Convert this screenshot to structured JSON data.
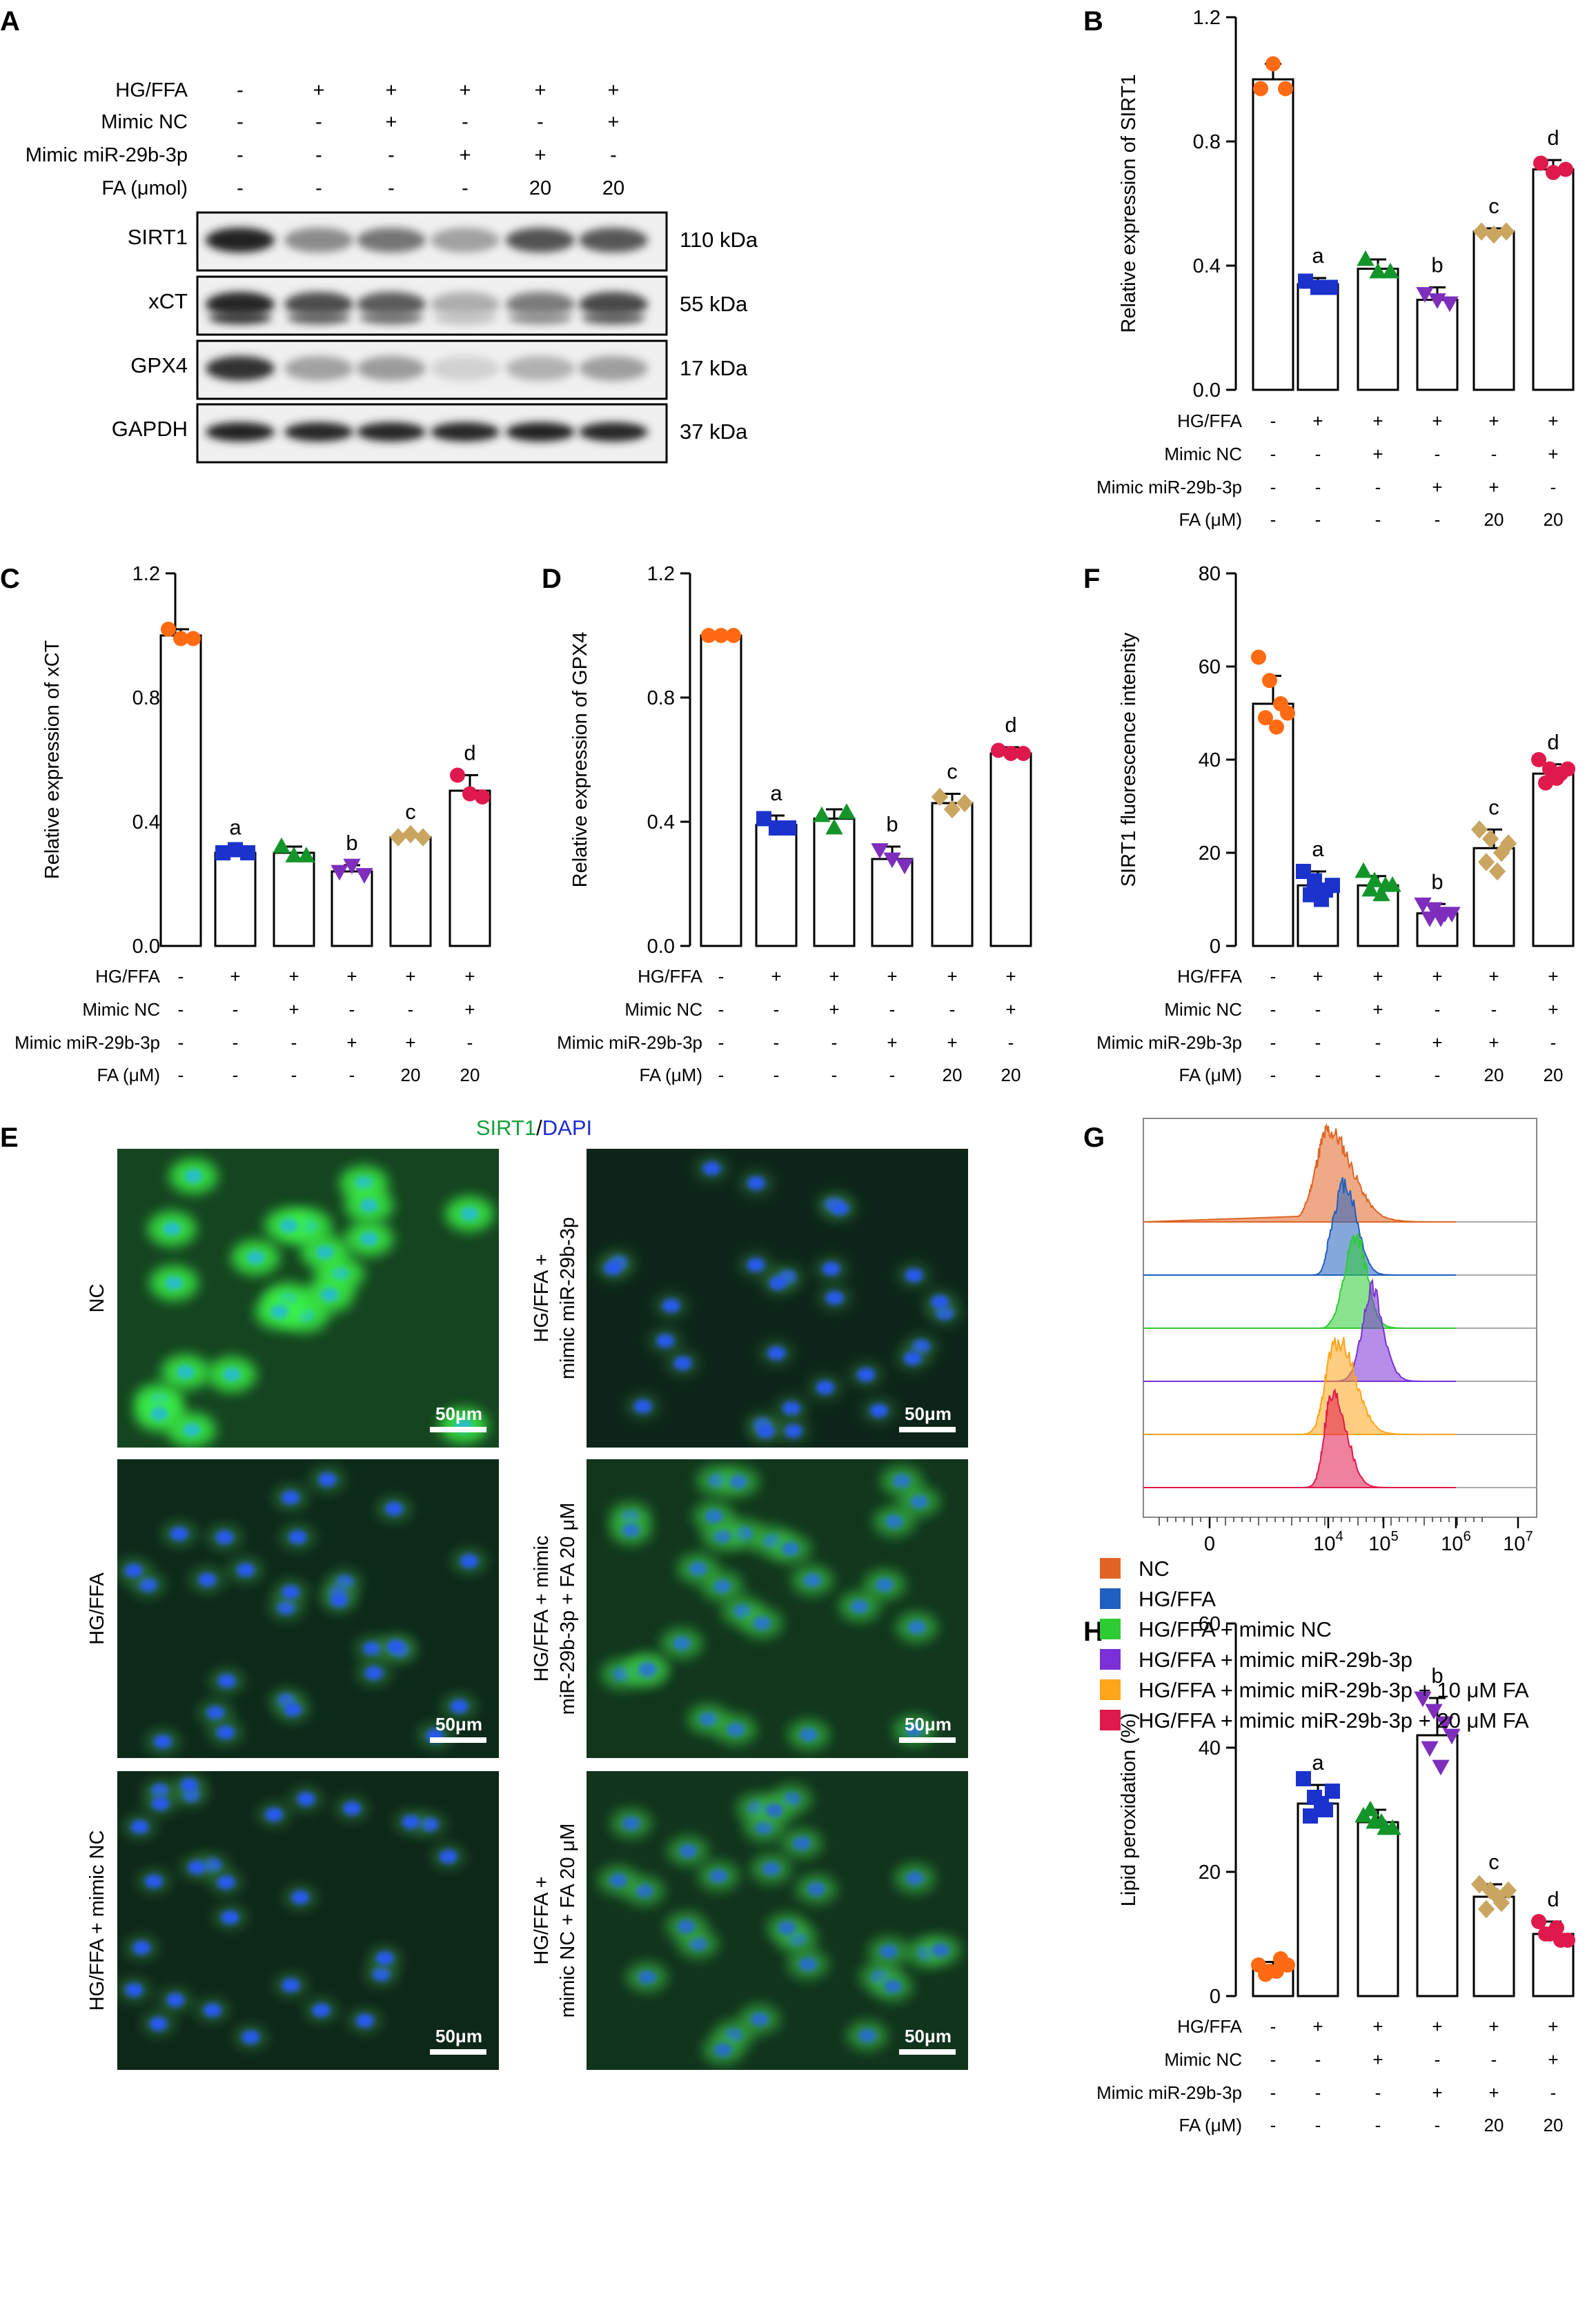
{
  "panel_letters": [
    "A",
    "B",
    "C",
    "D",
    "E",
    "F",
    "G",
    "H"
  ],
  "row_labels": [
    "HG/FFA",
    "Mimic NC",
    "Mimic miR-29b-3p",
    "FA (μM)"
  ],
  "group_row_values": [
    [
      "-",
      "-",
      "-",
      "-"
    ],
    [
      "+",
      "-",
      "-",
      "-"
    ],
    [
      "+",
      "+",
      "-",
      "-"
    ],
    [
      "+",
      "-",
      "+",
      "-"
    ],
    [
      "+",
      "-",
      "+",
      "20"
    ],
    [
      "+",
      "+",
      "-",
      "20"
    ]
  ],
  "colors": {
    "nc": "#ff6a13",
    "hgffa": "#1b33cc",
    "mimic_nc": "#13952a",
    "mimic_mir": "#7e2dbd",
    "fa_a": "#c9a560",
    "fa_b": "#e0194c"
  },
  "western": {
    "row_labels": [
      "HG/FFA",
      "Mimic NC",
      "Mimic miR-29b-3p",
      "FA (μmol)"
    ],
    "bands": [
      {
        "name": "SIRT1",
        "kda": "110 kDa",
        "intensity": [
          0.92,
          0.45,
          0.55,
          0.35,
          0.7,
          0.68
        ]
      },
      {
        "name": "xCT",
        "kda": "55 kDa",
        "intensity": [
          0.9,
          0.72,
          0.66,
          0.3,
          0.52,
          0.74
        ]
      },
      {
        "name": "GPX4",
        "kda": "17 kDa",
        "intensity": [
          0.85,
          0.35,
          0.38,
          0.14,
          0.28,
          0.36
        ]
      },
      {
        "name": "GAPDH",
        "kda": "37 kDa",
        "intensity": [
          0.92,
          0.9,
          0.9,
          0.9,
          0.92,
          0.9
        ]
      }
    ]
  },
  "micrographs": {
    "title_a": "SIRT1",
    "title_sep": "/",
    "title_b": "DAPI",
    "scale_bar": "50μm",
    "labels_left": [
      "NC",
      "HG/FFA",
      "HG/FFA + mimic NC"
    ],
    "labels_right": [
      [
        "HG/FFA +",
        "mimic miR-29b-3p"
      ],
      [
        "HG/FFA + mimic",
        "miR-29b-3p + FA 20 μM"
      ],
      [
        "HG/FFA +",
        "mimic NC + FA 20 μM"
      ]
    ],
    "green_level": [
      0.95,
      0.28,
      0.22,
      0.18,
      0.6,
      0.55
    ]
  },
  "chart_data": [
    {
      "panel": "B",
      "type": "bar",
      "ylabel": "Relative expression of SIRT1",
      "ylim": [
        0,
        1.2
      ],
      "yticks": [
        "0.0",
        "0.4",
        "0.8",
        "1.2"
      ],
      "means": [
        1.0,
        0.34,
        0.39,
        0.29,
        0.51,
        0.71
      ],
      "sd": [
        0.05,
        0.02,
        0.03,
        0.04,
        0.01,
        0.03
      ],
      "points": [
        [
          0.97,
          1.05,
          0.97
        ],
        [
          0.35,
          0.33,
          0.33
        ],
        [
          0.42,
          0.38,
          0.38
        ],
        [
          0.31,
          0.29,
          0.28
        ],
        [
          0.51,
          0.5,
          0.51
        ],
        [
          0.73,
          0.7,
          0.71
        ]
      ],
      "letters": [
        "",
        "a",
        "",
        "b",
        "c",
        "d"
      ]
    },
    {
      "panel": "C",
      "type": "bar",
      "ylabel": "Relative expression of xCT",
      "ylim": [
        0,
        1.2
      ],
      "yticks": [
        "0.0",
        "0.4",
        "0.8",
        "1.2"
      ],
      "means": [
        1.0,
        0.3,
        0.3,
        0.24,
        0.35,
        0.5
      ],
      "sd": [
        0.02,
        0.01,
        0.02,
        0.02,
        0.01,
        0.05
      ],
      "points": [
        [
          1.02,
          0.99,
          0.99
        ],
        [
          0.3,
          0.31,
          0.3
        ],
        [
          0.32,
          0.29,
          0.29
        ],
        [
          0.24,
          0.26,
          0.23
        ],
        [
          0.35,
          0.36,
          0.35
        ],
        [
          0.55,
          0.49,
          0.48
        ]
      ],
      "letters": [
        "",
        "a",
        "",
        "b",
        "c",
        "d"
      ]
    },
    {
      "panel": "D",
      "type": "bar",
      "ylabel": "Relative expression of GPX4",
      "ylim": [
        0,
        1.2
      ],
      "yticks": [
        "0.0",
        "0.4",
        "0.8",
        "1.2"
      ],
      "means": [
        1.0,
        0.39,
        0.41,
        0.28,
        0.46,
        0.62
      ],
      "sd": [
        0.01,
        0.03,
        0.03,
        0.04,
        0.03,
        0.02
      ],
      "points": [
        [
          1.0,
          1.0,
          1.0
        ],
        [
          0.41,
          0.38,
          0.38
        ],
        [
          0.42,
          0.38,
          0.43
        ],
        [
          0.31,
          0.28,
          0.26
        ],
        [
          0.48,
          0.44,
          0.46
        ],
        [
          0.63,
          0.62,
          0.62
        ]
      ],
      "letters": [
        "",
        "a",
        "",
        "b",
        "c",
        "d"
      ]
    },
    {
      "panel": "F",
      "type": "bar",
      "ylabel": "SIRT1 fluorescence intensity",
      "ylim": [
        0,
        80
      ],
      "yticks": [
        "0",
        "20",
        "40",
        "60",
        "80"
      ],
      "means": [
        52,
        13,
        13,
        7,
        21,
        37
      ],
      "sd": [
        6,
        3,
        2,
        2,
        4,
        2
      ],
      "points": [
        [
          62,
          57,
          52,
          49,
          47,
          50
        ],
        [
          16,
          14,
          12,
          11,
          10,
          13
        ],
        [
          16,
          14,
          13,
          12,
          11,
          13
        ],
        [
          9,
          8,
          7,
          6,
          6,
          7
        ],
        [
          25,
          23,
          20,
          18,
          16,
          22
        ],
        [
          40,
          38,
          37,
          35,
          36,
          38
        ]
      ],
      "letters": [
        "",
        "a",
        "",
        "b",
        "c",
        "d"
      ]
    },
    {
      "panel": "H",
      "type": "bar",
      "ylabel": "Lipid peroxidation (%)",
      "ylim": [
        0,
        60
      ],
      "yticks": [
        "0",
        "20",
        "40",
        "60"
      ],
      "means": [
        4.5,
        31,
        28,
        42,
        16,
        10
      ],
      "sd": [
        1,
        3,
        2,
        6,
        2,
        2
      ],
      "points": [
        [
          5,
          4,
          6,
          3.5,
          4,
          5
        ],
        [
          35,
          32,
          30,
          29,
          31,
          33
        ],
        [
          29,
          28,
          27,
          30,
          28,
          27
        ],
        [
          48,
          46,
          44,
          40,
          37,
          42
        ],
        [
          18,
          17,
          15,
          14,
          16,
          17
        ],
        [
          12,
          10,
          9,
          10,
          11,
          9
        ]
      ],
      "letters": [
        "",
        "a",
        "",
        "b",
        "c",
        "d"
      ]
    },
    {
      "panel": "G",
      "type": "histogram",
      "xticks": [
        "0",
        "10",
        "10",
        "10",
        "10"
      ],
      "xtick_exps": [
        "",
        "4",
        "5",
        "6",
        "7"
      ],
      "legend": [
        "NC",
        "HG/FFA",
        "HG/FFA + mimic NC",
        "HG/FFA + mimic miR-29b-3p",
        "HG/FFA + mimic miR-29b-3p + 10 μM FA",
        "HG/FFA + mimic miR-29b-3p + 20 μM FA"
      ],
      "series_colors": [
        "#e06424",
        "#2060c0",
        "#2ecc33",
        "#7a30d6",
        "#ffa51a",
        "#e0194c"
      ],
      "peak_log10": [
        4.0,
        4.3,
        4.5,
        4.8,
        4.2,
        4.1
      ],
      "peak_width": [
        0.42,
        0.22,
        0.2,
        0.18,
        0.3,
        0.24
      ]
    }
  ]
}
